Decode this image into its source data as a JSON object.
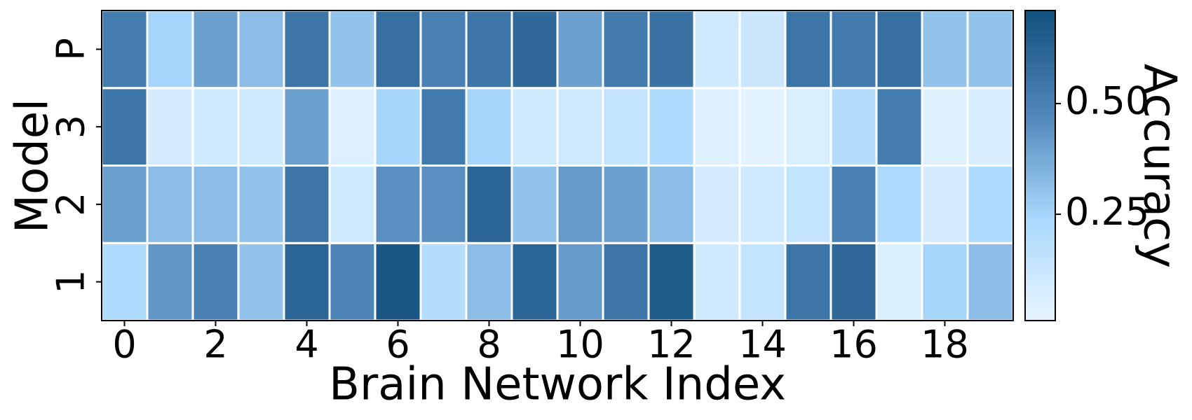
{
  "chart_data": {
    "type": "heatmap",
    "xlabel": "Brain Network Index",
    "ylabel": "Model",
    "x": [
      0,
      1,
      2,
      3,
      4,
      5,
      6,
      7,
      8,
      9,
      10,
      11,
      12,
      13,
      14,
      15,
      16,
      17,
      18,
      19
    ],
    "xlim": [
      -0.5,
      19.5
    ],
    "xticks": [
      0,
      2,
      4,
      6,
      8,
      10,
      12,
      14,
      16,
      18
    ],
    "y": [
      "1",
      "2",
      "3",
      "P"
    ],
    "values": [
      [
        0.22,
        0.43,
        0.5,
        0.3,
        0.62,
        0.48,
        0.68,
        0.2,
        0.32,
        0.62,
        0.42,
        0.55,
        0.66,
        0.1,
        0.15,
        0.55,
        0.6,
        0.06,
        0.25,
        0.32
      ],
      [
        0.4,
        0.32,
        0.32,
        0.3,
        0.55,
        0.1,
        0.45,
        0.45,
        0.62,
        0.3,
        0.42,
        0.4,
        0.32,
        0.08,
        0.1,
        0.15,
        0.5,
        0.22,
        0.08,
        0.22
      ],
      [
        0.55,
        0.08,
        0.1,
        0.1,
        0.4,
        0.05,
        0.25,
        0.53,
        0.25,
        0.1,
        0.1,
        0.15,
        0.22,
        0.04,
        0.03,
        0.06,
        0.2,
        0.52,
        0.04,
        0.07
      ],
      [
        0.52,
        0.25,
        0.4,
        0.32,
        0.55,
        0.3,
        0.57,
        0.5,
        0.55,
        0.6,
        0.4,
        0.53,
        0.56,
        0.1,
        0.12,
        0.55,
        0.53,
        0.57,
        0.3,
        0.3
      ]
    ],
    "colorbar_label": "Accuracy",
    "clim": [
      0.01,
      0.71
    ],
    "cticks": [
      0.25,
      {
        "value": 0.5,
        "label": "0.50"
      }
    ],
    "colormap": [
      "#e8f5ff",
      "#a8d8fb",
      "#4f86ba",
      "#11507d"
    ]
  }
}
